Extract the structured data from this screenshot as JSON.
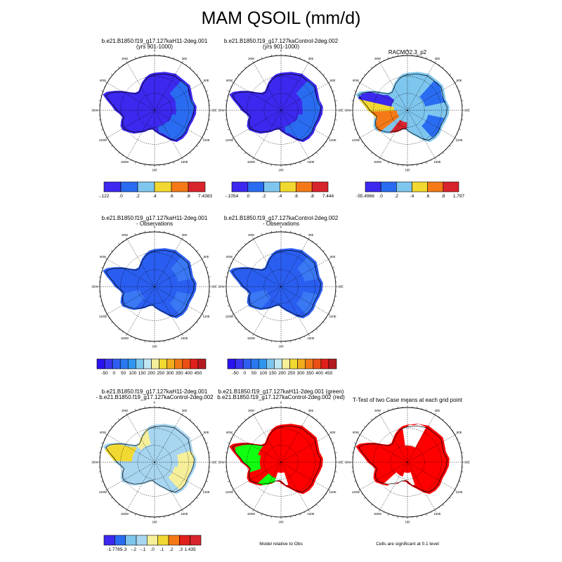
{
  "title": "MAM QSOIL (mm/d)",
  "colors": {
    "background": "#ffffff",
    "mask_fill": "#ffffff",
    "t_test_fill": "#ff0000",
    "green_model": "#11ff11",
    "red_model": "#ff0000"
  },
  "longitude_labels": [
    "0",
    "30E",
    "60E",
    "90E",
    "120E",
    "150E",
    "180",
    "150W",
    "120W",
    "90W",
    "60W",
    "30W"
  ],
  "panels": [
    {
      "id": "case1",
      "title_lines": [
        "b.e21.B1850.f19_g17.127kaH11-2deg.001",
        "(yrs 901-1000)"
      ],
      "base_color": "#3c28ee",
      "blobs": [
        {
          "lon": 150,
          "frac": 0.55,
          "color": "#2a6cf1"
        },
        {
          "lon": 120,
          "frac": 0.6,
          "color": "#2a6cf1"
        },
        {
          "lon": 90,
          "frac": 0.72,
          "color": "#2a6cf1"
        },
        {
          "lon": 60,
          "frac": 0.75,
          "color": "#2a6cf1"
        }
      ],
      "colorbar": {
        "colors": [
          "#3c28ee",
          "#2a6cf1",
          "#7ec6ee",
          "#f2d931",
          "#f57a17",
          "#d8242c"
        ],
        "labels": [
          "-.122",
          ".0",
          ".2",
          ".4",
          ".6",
          ".8",
          "7.4383"
        ]
      }
    },
    {
      "id": "case2",
      "title_lines": [
        "b.e21.B1850.f19_g17.127kaControl-2deg.002",
        "(yrs 901-1000)"
      ],
      "base_color": "#3c28ee",
      "blobs": [
        {
          "lon": 150,
          "frac": 0.55,
          "color": "#2a6cf1"
        },
        {
          "lon": 120,
          "frac": 0.6,
          "color": "#2a6cf1"
        },
        {
          "lon": 90,
          "frac": 0.72,
          "color": "#2a6cf1"
        },
        {
          "lon": 60,
          "frac": 0.75,
          "color": "#2a6cf1"
        }
      ],
      "colorbar": {
        "colors": [
          "#3c28ee",
          "#2a6cf1",
          "#7ec6ee",
          "#f2d931",
          "#f57a17",
          "#d8242c"
        ],
        "labels": [
          "-.1054",
          ".0",
          ".2",
          ".4",
          ".6",
          ".8",
          "7.444"
        ]
      }
    },
    {
      "id": "racmo",
      "title_lines": [
        "RACMO2.3_p2"
      ],
      "base_color": "#7ec6ee",
      "blobs": [
        {
          "lon": 290,
          "frac": 0.55,
          "color": "#3c28ee"
        },
        {
          "lon": 265,
          "frac": 0.45,
          "color": "#f2d931"
        },
        {
          "lon": 250,
          "frac": 0.35,
          "color": "#f57a17"
        },
        {
          "lon": 60,
          "frac": 0.6,
          "color": "#2a6cf1"
        },
        {
          "lon": 120,
          "frac": 0.7,
          "color": "#2a6cf1"
        },
        {
          "lon": 200,
          "frac": 0.4,
          "color": "#d8242c"
        }
      ],
      "colorbar": {
        "colors": [
          "#3c28ee",
          "#2a6cf1",
          "#7ec6ee",
          "#f2d931",
          "#f57a17",
          "#d8242c"
        ],
        "labels": [
          "-55.4966",
          ".0",
          ".2",
          ".4",
          ".6",
          ".8",
          "1.797"
        ]
      }
    },
    {
      "id": "case1obs",
      "title_lines": [
        "b.e21.B1850.f19_g17.127kaH11-2deg.001",
        "- Observations"
      ],
      "base_color": "#2a5ef0",
      "blobs": [
        {
          "lon": 240,
          "frac": 0.5,
          "color": "#3a78f4"
        },
        {
          "lon": 120,
          "frac": 0.75,
          "color": "#3a78f4"
        },
        {
          "lon": 60,
          "frac": 0.8,
          "color": "#3a78f4"
        }
      ],
      "colorbar": {
        "colors": [
          "#2a12ee",
          "#3a36ef",
          "#2f5ff0",
          "#2a78f0",
          "#2f95ee",
          "#7ec6ee",
          "#c0e8f3",
          "#f5ef9a",
          "#f2d931",
          "#f2ac20",
          "#f07a17",
          "#ea4f15",
          "#e0201a",
          "#b51b22"
        ],
        "labels": [
          "-50",
          "0",
          "50",
          "100",
          "150",
          "200",
          "250",
          "300",
          "350",
          "400",
          "450"
        ]
      }
    },
    {
      "id": "case2obs",
      "title_lines": [
        "b.e21.B1850.f19_g17.127kaControl-2deg.002",
        "- Observations"
      ],
      "base_color": "#2a5ef0",
      "blobs": [
        {
          "lon": 240,
          "frac": 0.5,
          "color": "#3a78f4"
        },
        {
          "lon": 120,
          "frac": 0.75,
          "color": "#3a78f4"
        },
        {
          "lon": 60,
          "frac": 0.8,
          "color": "#3a78f4"
        }
      ],
      "colorbar": {
        "colors": [
          "#2a12ee",
          "#3a36ef",
          "#2f5ff0",
          "#2a78f0",
          "#2f95ee",
          "#7ec6ee",
          "#c0e8f3",
          "#f5ef9a",
          "#f2d931",
          "#f2ac20",
          "#f07a17",
          "#ea4f15",
          "#e0201a",
          "#b51b22"
        ],
        "labels": [
          "-50",
          "0",
          "50",
          "100",
          "150",
          "200",
          "250",
          "300",
          "350",
          "400",
          "450"
        ]
      }
    },
    {
      "id": "diff",
      "title_lines": [
        "b.e21.B1850.f19_g17.127kaH11-2deg.001",
        "- b.e21.B1850.f19_g17.127kaControl-2deg.002"
      ],
      "base_color": "#a8d6f1",
      "blobs": [
        {
          "lon": 90,
          "frac": 0.78,
          "color": "#f5ef9a"
        },
        {
          "lon": 120,
          "frac": 0.68,
          "color": "#f5ef9a"
        },
        {
          "lon": 330,
          "frac": 0.6,
          "color": "#f5ef9a"
        },
        {
          "lon": 290,
          "frac": 0.75,
          "color": "#f2d931"
        }
      ],
      "colorbar": {
        "colors": [
          "#3c28ee",
          "#2a6cf1",
          "#7ec6ee",
          "#a8d6f1",
          "#f5ef9a",
          "#f2d931",
          "#f57a17",
          "#e0201a",
          "#d8242c"
        ],
        "labels": [
          "-1.7785",
          "-.3",
          "-.2",
          "-.1",
          ".0",
          ".1",
          ".2",
          ".3",
          "1.435"
        ]
      }
    },
    {
      "id": "modelobs",
      "title_lines": [
        "b.e21.B1850.f19_g17.127kaH11-2deg.001 (green)",
        "b.e21.B1850.f19_g17.127kaControl-2deg.002 (red)"
      ],
      "base_color": "#ff0000",
      "blobs": [
        {
          "lon": 270,
          "frac": 0.7,
          "color": "#11ff11"
        },
        {
          "lon": 300,
          "frac": 0.8,
          "color": "#11ff11"
        },
        {
          "lon": 210,
          "frac": 0.55,
          "color": "#11ff11"
        },
        {
          "lon": 180,
          "frac": 0.35,
          "color": "#ffffff"
        }
      ],
      "caption": "Model relative to Obs"
    },
    {
      "id": "ttest",
      "title_lines": [
        "T-Test of two Case means at each grid point"
      ],
      "base_color": "#ff0000",
      "blobs": [
        {
          "lon": 180,
          "frac": 0.35,
          "color": "#ffffff"
        },
        {
          "lon": 210,
          "frac": 0.5,
          "color": "#ffffff"
        },
        {
          "lon": 10,
          "frac": 0.55,
          "color": "#ffffff"
        }
      ],
      "caption": "Cells are significant at 0.1 level"
    }
  ]
}
